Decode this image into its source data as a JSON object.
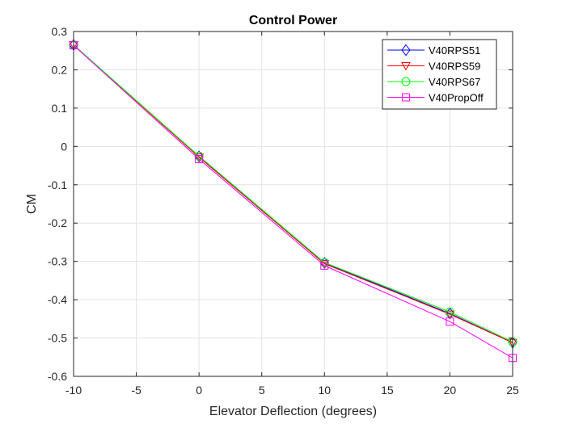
{
  "chart_data": {
    "type": "line",
    "title": "Control Power",
    "xlabel": "Elevator Deflection (degrees)",
    "ylabel": "CM",
    "xlim": [
      -10,
      25
    ],
    "ylim": [
      -0.6,
      0.3
    ],
    "xticks": [
      -10,
      -5,
      0,
      5,
      10,
      15,
      20,
      25
    ],
    "xtick_labels": [
      "-10",
      "-5",
      "0",
      "5",
      "10",
      "15",
      "20",
      "25"
    ],
    "yticks": [
      0.3,
      0.2,
      0.1,
      0,
      -0.1,
      -0.2,
      -0.3,
      -0.4,
      -0.5,
      -0.6
    ],
    "ytick_labels": [
      "0.3",
      "0.2",
      "0.1",
      "0",
      "-0.1",
      "-0.2",
      "-0.3",
      "-0.4",
      "-0.5",
      "-0.6"
    ],
    "grid": true,
    "legend_position": "top-right",
    "x": [
      -10,
      0,
      10,
      20,
      25
    ],
    "series": [
      {
        "name": "V40RPS51",
        "color": "#0000ff",
        "marker": "diamond",
        "values": [
          0.265,
          -0.026,
          -0.304,
          -0.436,
          -0.512
        ]
      },
      {
        "name": "V40RPS59",
        "color": "#ff0000",
        "marker": "triangle-down",
        "values": [
          0.265,
          -0.028,
          -0.306,
          -0.438,
          -0.512
        ]
      },
      {
        "name": "V40RPS67",
        "color": "#00ff00",
        "marker": "circle",
        "values": [
          0.265,
          -0.025,
          -0.303,
          -0.432,
          -0.51
        ]
      },
      {
        "name": "V40PropOff",
        "color": "#ff00ff",
        "marker": "square",
        "values": [
          0.264,
          -0.033,
          -0.311,
          -0.457,
          -0.552
        ]
      }
    ]
  }
}
